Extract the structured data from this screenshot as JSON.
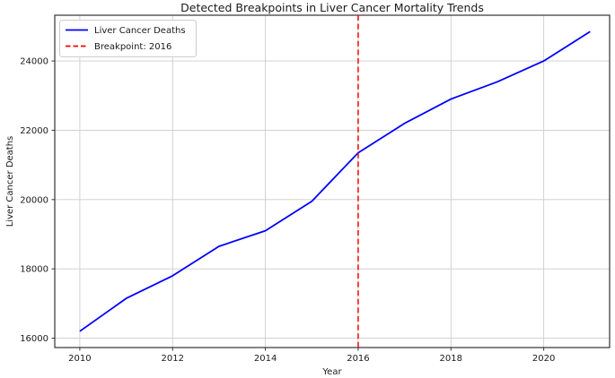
{
  "chart_data": {
    "type": "line",
    "title": "Detected Breakpoints in Liver Cancer Mortality Trends",
    "xlabel": "Year",
    "ylabel": "Liver Cancer Deaths",
    "x": [
      2010,
      2011,
      2012,
      2013,
      2014,
      2015,
      2016,
      2017,
      2018,
      2019,
      2020,
      2021
    ],
    "series": [
      {
        "name": "Liver Cancer Deaths",
        "color": "#0000ff",
        "line_style": "solid",
        "values": [
          16200,
          17150,
          17800,
          18650,
          19100,
          19950,
          21350,
          22200,
          22900,
          23400,
          24000,
          24850
        ]
      }
    ],
    "breakpoint": {
      "label": "Breakpoint: 2016",
      "x": 2016,
      "color": "#ff0000",
      "line_style": "dashed"
    },
    "legend": {
      "position": "upper left",
      "entries": [
        "Liver Cancer Deaths",
        "Breakpoint: 2016"
      ]
    },
    "xticks": [
      2010,
      2012,
      2014,
      2016,
      2018,
      2020
    ],
    "yticks": [
      16000,
      18000,
      20000,
      22000,
      24000
    ],
    "xlim": [
      2009.46,
      2021.42
    ],
    "ylim": [
      15730,
      25320
    ],
    "grid": true,
    "colors": {
      "grid": "#cccccc",
      "spine": "#333333",
      "text": "#1a1a1a",
      "background": "#ffffff"
    }
  }
}
